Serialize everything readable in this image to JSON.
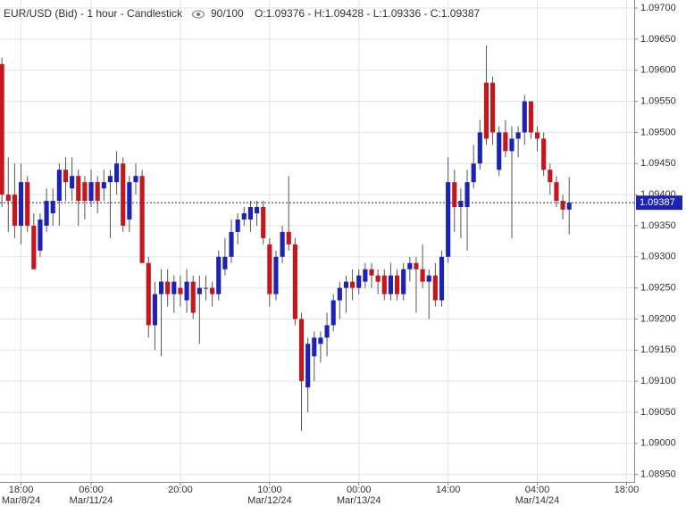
{
  "chart_data": {
    "type": "candlestick",
    "title": "EUR/USD (Bid) - 1 hour - Candlestick",
    "view_count": "90/100",
    "ohlc_text": "O:1.09376 - H:1.09428 - L:1.09336 - C:1.09387",
    "up_color": "#1c22b4",
    "down_color": "#c4161c",
    "grid": true,
    "ylim": [
      1.08938,
      1.09713
    ],
    "yticks": [
      {
        "value": 1.097,
        "label": "1.09700"
      },
      {
        "value": 1.0965,
        "label": "1.09650"
      },
      {
        "value": 1.096,
        "label": "1.09600"
      },
      {
        "value": 1.0955,
        "label": "1.09550"
      },
      {
        "value": 1.095,
        "label": "1.09500"
      },
      {
        "value": 1.0945,
        "label": "1.09450"
      },
      {
        "value": 1.094,
        "label": "1.09400"
      },
      {
        "value": 1.0935,
        "label": "1.09350"
      },
      {
        "value": 1.093,
        "label": "1.09300"
      },
      {
        "value": 1.0925,
        "label": "1.09250"
      },
      {
        "value": 1.092,
        "label": "1.09200"
      },
      {
        "value": 1.0915,
        "label": "1.09150"
      },
      {
        "value": 1.091,
        "label": "1.09100"
      },
      {
        "value": 1.0905,
        "label": "1.09050"
      },
      {
        "value": 1.09,
        "label": "1.09000"
      },
      {
        "value": 1.0895,
        "label": "1.08950"
      }
    ],
    "xlim": [
      -0.3,
      99.2
    ],
    "xticks": [
      {
        "value": 3,
        "label": "18:00"
      },
      {
        "value": 14,
        "label": "06:00"
      },
      {
        "value": 28,
        "label": "20:00"
      },
      {
        "value": 42,
        "label": "10:00"
      },
      {
        "value": 56,
        "label": "00:00"
      },
      {
        "value": 70,
        "label": "14:00"
      },
      {
        "value": 84,
        "label": "04:00"
      },
      {
        "value": 98,
        "label": "18:00"
      }
    ],
    "xtick_dates": [
      {
        "value": 3,
        "label": "Mar/8/24"
      },
      {
        "value": 14,
        "label": "Mar/11/24"
      },
      {
        "value": 42,
        "label": "Mar/12/24"
      },
      {
        "value": 56,
        "label": "Mar/13/24"
      },
      {
        "value": 84,
        "label": "Mar/14/24"
      }
    ],
    "last_price": {
      "value": 1.09387,
      "label": "1.09387"
    },
    "open": [
      1.0961,
      1.094,
      1.094,
      1.0935,
      1.0942,
      1.0935,
      1.0931,
      1.0935,
      1.0937,
      1.0939,
      1.0944,
      1.0941,
      1.0943,
      1.0942,
      1.0939,
      1.0942,
      1.0941,
      1.0942,
      1.0942,
      1.0945,
      1.0936,
      1.0942,
      1.0943,
      1.0929,
      1.0919,
      1.0924,
      1.0926,
      1.0924,
      1.0925,
      1.0923,
      1.0926,
      1.0924,
      1.0925,
      1.0925,
      1.0924,
      1.0928,
      1.093,
      1.0934,
      1.0936,
      1.0936,
      1.0937,
      1.0938,
      1.0932,
      1.0924,
      1.093,
      1.0934,
      1.0932,
      1.092,
      1.0909,
      1.0914,
      1.0916,
      1.0917,
      1.0919,
      1.0923,
      1.0925,
      1.0926,
      1.0925,
      1.0926,
      1.0928,
      1.0927,
      1.0927,
      1.0924,
      1.0927,
      1.0924,
      1.0928,
      1.0929,
      1.0928,
      1.0926,
      1.0927,
      1.0923,
      1.093,
      1.0942,
      1.0938,
      1.0938,
      1.0942,
      1.0945,
      1.0958,
      1.0958,
      1.0944,
      1.095,
      1.0947,
      1.0949,
      1.095,
      1.0955,
      1.095,
      1.0949,
      1.0944,
      1.0942,
      1.0939,
      1.09376
    ],
    "high": [
      1.0962,
      1.0946,
      1.0945,
      1.0945,
      1.0943,
      1.0937,
      1.0937,
      1.0941,
      1.0941,
      1.0945,
      1.0946,
      1.0946,
      1.0944,
      1.0943,
      1.0944,
      1.0943,
      1.0944,
      1.0944,
      1.0947,
      1.0946,
      1.0943,
      1.0945,
      1.0944,
      1.093,
      1.0926,
      1.0928,
      1.0928,
      1.0927,
      1.0927,
      1.0928,
      1.0927,
      1.0927,
      1.0927,
      1.0926,
      1.0931,
      1.0933,
      1.0936,
      1.0937,
      1.0938,
      1.0939,
      1.0939,
      1.0939,
      1.0933,
      1.0931,
      1.0935,
      1.0943,
      1.0933,
      1.0921,
      1.0917,
      1.0918,
      1.0918,
      1.0921,
      1.0924,
      1.0926,
      1.0927,
      1.0928,
      1.0928,
      1.0929,
      1.0929,
      1.0928,
      1.0928,
      1.0929,
      1.0928,
      1.0929,
      1.093,
      1.093,
      1.0932,
      1.0928,
      1.0929,
      1.0931,
      1.0946,
      1.0944,
      1.0941,
      1.0944,
      1.0948,
      1.0952,
      1.0964,
      1.0959,
      1.0951,
      1.0952,
      1.0951,
      1.0951,
      1.0956,
      1.0955,
      1.0951,
      1.095,
      1.0945,
      1.0943,
      1.094,
      1.09428
    ],
    "low": [
      1.0938,
      1.0934,
      1.0933,
      1.0932,
      1.0934,
      1.0928,
      1.093,
      1.0934,
      1.0935,
      1.0935,
      1.0939,
      1.0939,
      1.0935,
      1.0936,
      1.0938,
      1.0937,
      1.0939,
      1.0933,
      1.094,
      1.0934,
      1.0934,
      1.094,
      1.0929,
      1.0917,
      1.0915,
      1.0914,
      1.0922,
      1.0921,
      1.0922,
      1.0921,
      1.092,
      1.0916,
      1.0923,
      1.0922,
      1.0923,
      1.0927,
      1.0929,
      1.0932,
      1.0935,
      1.0934,
      1.0935,
      1.0932,
      1.0922,
      1.0923,
      1.0929,
      1.0931,
      1.0919,
      1.0902,
      1.0905,
      1.091,
      1.0913,
      1.0914,
      1.0918,
      1.092,
      1.0921,
      1.0923,
      1.0924,
      1.0925,
      1.0925,
      1.0924,
      1.0923,
      1.0923,
      1.0923,
      1.0923,
      1.0926,
      1.0921,
      1.0925,
      1.092,
      1.0922,
      1.0922,
      1.0929,
      1.0934,
      1.0933,
      1.0931,
      1.0941,
      1.0944,
      1.0948,
      1.0948,
      1.0943,
      1.0946,
      1.0933,
      1.0946,
      1.0948,
      1.0949,
      1.0947,
      1.0943,
      1.094,
      1.0938,
      1.0936,
      1.09336
    ],
    "close": [
      1.094,
      1.0939,
      1.0935,
      1.0942,
      1.0935,
      1.0928,
      1.0936,
      1.0939,
      1.0939,
      1.0944,
      1.0942,
      1.0943,
      1.0939,
      1.0939,
      1.0942,
      1.0939,
      1.0942,
      1.0943,
      1.0945,
      1.0935,
      1.0942,
      1.0943,
      1.0929,
      1.0919,
      1.0924,
      1.0926,
      1.0924,
      1.0926,
      1.0924,
      1.0926,
      1.0921,
      1.0925,
      1.0925,
      1.0924,
      1.093,
      1.093,
      1.0934,
      1.0936,
      1.0937,
      1.0938,
      1.0938,
      1.0933,
      1.0924,
      1.093,
      1.0934,
      1.0932,
      1.092,
      1.091,
      1.0916,
      1.0917,
      1.0917,
      1.0919,
      1.0923,
      1.0925,
      1.0926,
      1.0925,
      1.0927,
      1.0928,
      1.0927,
      1.0926,
      1.0924,
      1.0927,
      1.0924,
      1.0928,
      1.0929,
      1.0928,
      1.0926,
      1.0927,
      1.0923,
      1.093,
      1.0942,
      1.0938,
      1.0939,
      1.0942,
      1.0945,
      1.095,
      1.0949,
      1.095,
      1.095,
      1.0947,
      1.0949,
      1.095,
      1.0955,
      1.095,
      1.0949,
      1.0944,
      1.0942,
      1.0939,
      1.09376,
      1.09387
    ]
  }
}
